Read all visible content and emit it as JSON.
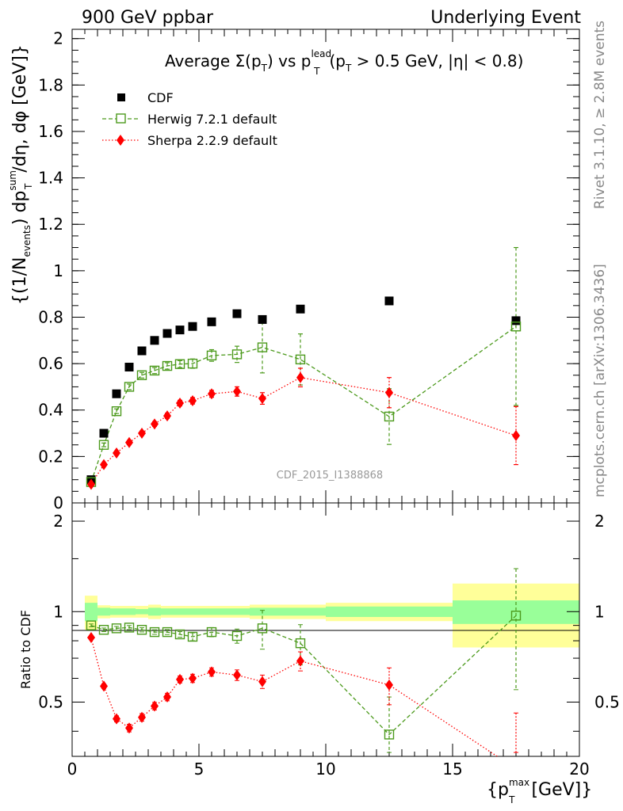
{
  "header": {
    "left": "900 GeV ppbar",
    "right": "Underlying Event"
  },
  "plot_title": {
    "prefix": "Average ",
    "sigma": "Σ(p",
    "sigma_sub": "T",
    "mid": ") vs p",
    "lead_sup": "lead",
    "lead_sub": "T",
    "cut_a": "(p",
    "cut_sub": "T",
    "cut_b": " > 0.5 GeV, |η| < 0.8)"
  },
  "side_labels": {
    "rivet": "Rivet 3.1.10, ≥ 2.8M events",
    "mcplots": "mcplots.cern.ch [arXiv:1306.3436]"
  },
  "watermark": "CDF_2015_I1388868",
  "axes": {
    "y_main_label": "{(1/Nevents) dpTsum/dη, dφ [GeV]}",
    "y_main": {
      "p1": "{(1/N",
      "p1_sub": "events",
      "p2": ") dp",
      "p2_sup": "sum",
      "p2_sub": "T",
      "p3": "/dη, dφ [GeV]}"
    },
    "y_ratio_label": "Ratio to CDF",
    "x_label": {
      "p1": "{p",
      "sup": "max",
      "sub": "T",
      "p2": " [GeV]}"
    }
  },
  "legend": [
    {
      "label": "CDF",
      "color": "#000000",
      "marker": "filled-square"
    },
    {
      "label": "Herwig 7.2.1 default",
      "color": "#4c9a1c",
      "marker": "open-square"
    },
    {
      "label": "Sherpa 2.2.9 default",
      "color": "#ff0000",
      "marker": "diamond"
    }
  ],
  "chart_data": {
    "type": "scatter",
    "x_range": [
      0,
      20
    ],
    "y_range_main": [
      0,
      2.04
    ],
    "y_range_ratio": [
      0.33,
      2.3
    ],
    "x_ticks": [
      0,
      5,
      10,
      15,
      20
    ],
    "y_ticks_main": [
      0,
      0.2,
      0.4,
      0.6,
      0.8,
      1,
      1.2,
      1.4,
      1.6,
      1.8,
      2
    ],
    "y_ticks_ratio": [
      0.5,
      1,
      2
    ],
    "y_ticks_main_labels": [
      "0",
      "0.2",
      "0.4",
      "0.6",
      "0.8",
      "1",
      "1.2",
      "1.4",
      "1.6",
      "1.8",
      "2"
    ],
    "y_ticks_ratio_labels": [
      "0.5",
      "1",
      "2"
    ],
    "x_ticks_labels": [
      "0",
      "5",
      "10",
      "15",
      "20"
    ],
    "x": [
      0.75,
      1.25,
      1.75,
      2.25,
      2.75,
      3.25,
      3.75,
      4.25,
      4.75,
      5.5,
      6.5,
      7.5,
      9.0,
      12.5,
      17.5
    ],
    "series": [
      {
        "name": "CDF",
        "values": [
          0.1,
          0.3,
          0.47,
          0.585,
          0.655,
          0.7,
          0.73,
          0.745,
          0.76,
          0.78,
          0.815,
          0.79,
          0.835,
          0.87,
          0.785
        ],
        "yerr": [
          0.005,
          0.006,
          0.008,
          0.009,
          0.01,
          0.01,
          0.011,
          0.011,
          0.012,
          0.013,
          0.014,
          0.015,
          0.017,
          0.02,
          0.03
        ]
      },
      {
        "name": "Herwig 7.2.1 default",
        "values": [
          0.09,
          0.25,
          0.395,
          0.5,
          0.55,
          0.57,
          0.59,
          0.598,
          0.6,
          0.635,
          0.64,
          0.67,
          0.618,
          0.372,
          0.76
        ],
        "yerr": [
          0.006,
          0.008,
          0.01,
          0.012,
          0.012,
          0.013,
          0.014,
          0.015,
          0.02,
          0.025,
          0.035,
          0.11,
          0.11,
          0.12,
          0.34
        ]
      },
      {
        "name": "Sherpa 2.2.9 default",
        "values": [
          0.08,
          0.165,
          0.215,
          0.26,
          0.3,
          0.34,
          0.375,
          0.43,
          0.44,
          0.47,
          0.48,
          0.45,
          0.54,
          0.475,
          0.29
        ],
        "yerr": [
          0.004,
          0.005,
          0.006,
          0.008,
          0.009,
          0.01,
          0.011,
          0.012,
          0.014,
          0.015,
          0.02,
          0.025,
          0.04,
          0.065,
          0.125
        ]
      }
    ],
    "ratio": {
      "herwig": [
        0.9,
        0.87,
        0.88,
        0.885,
        0.87,
        0.855,
        0.855,
        0.84,
        0.825,
        0.855,
        0.83,
        0.88,
        0.785,
        0.39,
        0.97
      ],
      "herwig_err": [
        0.01,
        0.012,
        0.013,
        0.014,
        0.014,
        0.015,
        0.016,
        0.018,
        0.025,
        0.03,
        0.045,
        0.13,
        0.12,
        0.13,
        0.42
      ],
      "sherpa": [
        0.82,
        0.565,
        0.44,
        0.41,
        0.445,
        0.485,
        0.52,
        0.595,
        0.6,
        0.63,
        0.615,
        0.585,
        0.685,
        0.57,
        0.3
      ],
      "sherpa_err": [
        0.01,
        0.01,
        0.01,
        0.012,
        0.013,
        0.014,
        0.015,
        0.016,
        0.019,
        0.02,
        0.025,
        0.03,
        0.05,
        0.08,
        0.16
      ]
    },
    "bands": {
      "edges": [
        0.5,
        1,
        1.5,
        2,
        2.5,
        3,
        3.5,
        4,
        4.5,
        5,
        6,
        7,
        8,
        10,
        15,
        20
      ],
      "green": [
        0.07,
        0.03,
        0.025,
        0.025,
        0.02,
        0.03,
        0.025,
        0.025,
        0.025,
        0.025,
        0.025,
        0.03,
        0.03,
        0.04,
        0.09
      ],
      "yellow": [
        0.13,
        0.05,
        0.045,
        0.045,
        0.045,
        0.055,
        0.045,
        0.045,
        0.045,
        0.045,
        0.045,
        0.055,
        0.055,
        0.07,
        0.24
      ]
    }
  }
}
